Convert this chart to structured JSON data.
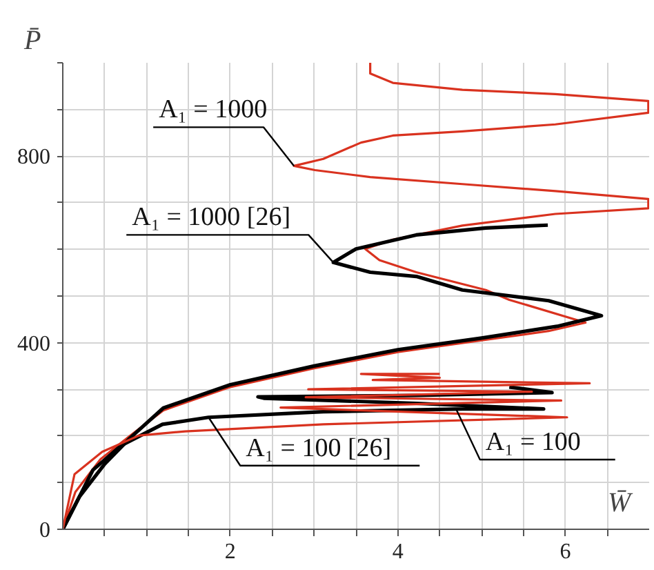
{
  "chart_data": {
    "type": "line",
    "xlabel": "W̄",
    "ylabel": "P̄",
    "xlim": [
      0,
      7
    ],
    "ylim": [
      0,
      1000
    ],
    "xticks": [
      {
        "value": 0.5,
        "label": null
      },
      {
        "value": 1,
        "label": null
      },
      {
        "value": 1.5,
        "label": null
      },
      2,
      {
        "value": 2.5,
        "label": null
      },
      {
        "value": 3,
        "label": null
      },
      {
        "value": 3.5,
        "label": null
      },
      4,
      {
        "value": 4.5,
        "label": null
      },
      {
        "value": 5,
        "label": null
      },
      {
        "value": 5.5,
        "label": null
      },
      6,
      {
        "value": 6.5,
        "label": null
      }
    ],
    "yticks": [
      0,
      {
        "value": 100,
        "label": null
      },
      {
        "value": 200,
        "label": null
      },
      {
        "value": 300,
        "label": null
      },
      400,
      {
        "value": 500,
        "label": null
      },
      {
        "value": 600,
        "label": null
      },
      {
        "value": 700,
        "label": null
      },
      800,
      {
        "value": 900,
        "label": null
      },
      {
        "value": 1000,
        "label": null
      }
    ],
    "grid": true,
    "marker": "none",
    "line_style": "solid",
    "series": [
      {
        "color": "#d9321f",
        "x": [
          0,
          0.15,
          0.45,
          0.8,
          1.2,
          2,
          3,
          4,
          5,
          5.8,
          6.24,
          5.33,
          5.05,
          4.22,
          3.78,
          3.61,
          3.94,
          4.77,
          5.88,
          6.99,
          6.99,
          5.88,
          4.77,
          3.67,
          3.01,
          2.76,
          3.11,
          3.56,
          3.94,
          4.77,
          5.88,
          6.99,
          6.99,
          5.88,
          4.77,
          3.94,
          3.67,
          3.67
        ],
        "values": [
          0,
          80,
          150,
          200,
          255,
          305,
          345,
          380,
          405,
          425,
          443,
          492,
          513,
          551,
          577,
          601,
          621,
          651,
          676,
          688,
          708,
          725,
          740,
          755,
          770,
          779,
          794,
          829,
          844,
          853,
          868,
          893,
          918,
          933,
          942,
          957,
          977,
          1000
        ]
      },
      {
        "color": "#000000",
        "x": [
          0,
          0.2,
          0.5,
          0.8,
          1.2,
          2,
          3,
          4,
          5,
          5.9,
          6.43,
          5.8,
          4.77,
          4.22,
          3.67,
          3.23,
          3.5,
          4.22,
          5.05,
          5.79
        ],
        "values": [
          0,
          70,
          140,
          195,
          260,
          310,
          350,
          385,
          410,
          435,
          458,
          490,
          513,
          542,
          551,
          572,
          601,
          631,
          646,
          652
        ]
      },
      {
        "color": "#000000",
        "x": [
          0,
          0.36,
          0.7,
          1.19,
          1.74,
          3.11,
          4.77,
          5.74,
          4.22,
          2.4,
          2.33,
          4.22,
          5.84,
          5.33
        ],
        "values": [
          0,
          127,
          180,
          225,
          240,
          252,
          258,
          258,
          270,
          281,
          284,
          287,
          293,
          305
        ]
      },
      {
        "color": "#d9321f",
        "x": [
          0,
          0.14,
          0.47,
          0.91,
          1.46,
          3.11,
          6.02,
          2.6,
          5.95,
          2.9,
          5.6,
          2.93,
          6.29,
          3.7,
          4.5,
          3.56,
          4.5
        ],
        "values": [
          0,
          118,
          166,
          201,
          210,
          225,
          240,
          261,
          276,
          283,
          295,
          300,
          313,
          320,
          325,
          333,
          333
        ]
      }
    ],
    "annotations": [
      {
        "text": "A₁ = 1000",
        "x": 2.76,
        "y": 779
      },
      {
        "text": "A₁ = 1000 [26]",
        "x": 3.23,
        "y": 572
      },
      {
        "text": "A₁ = 100 [26]",
        "x": 1.74,
        "y": 240
      },
      {
        "text": "A₁ = 100",
        "x": 4.7,
        "y": 256
      }
    ]
  }
}
